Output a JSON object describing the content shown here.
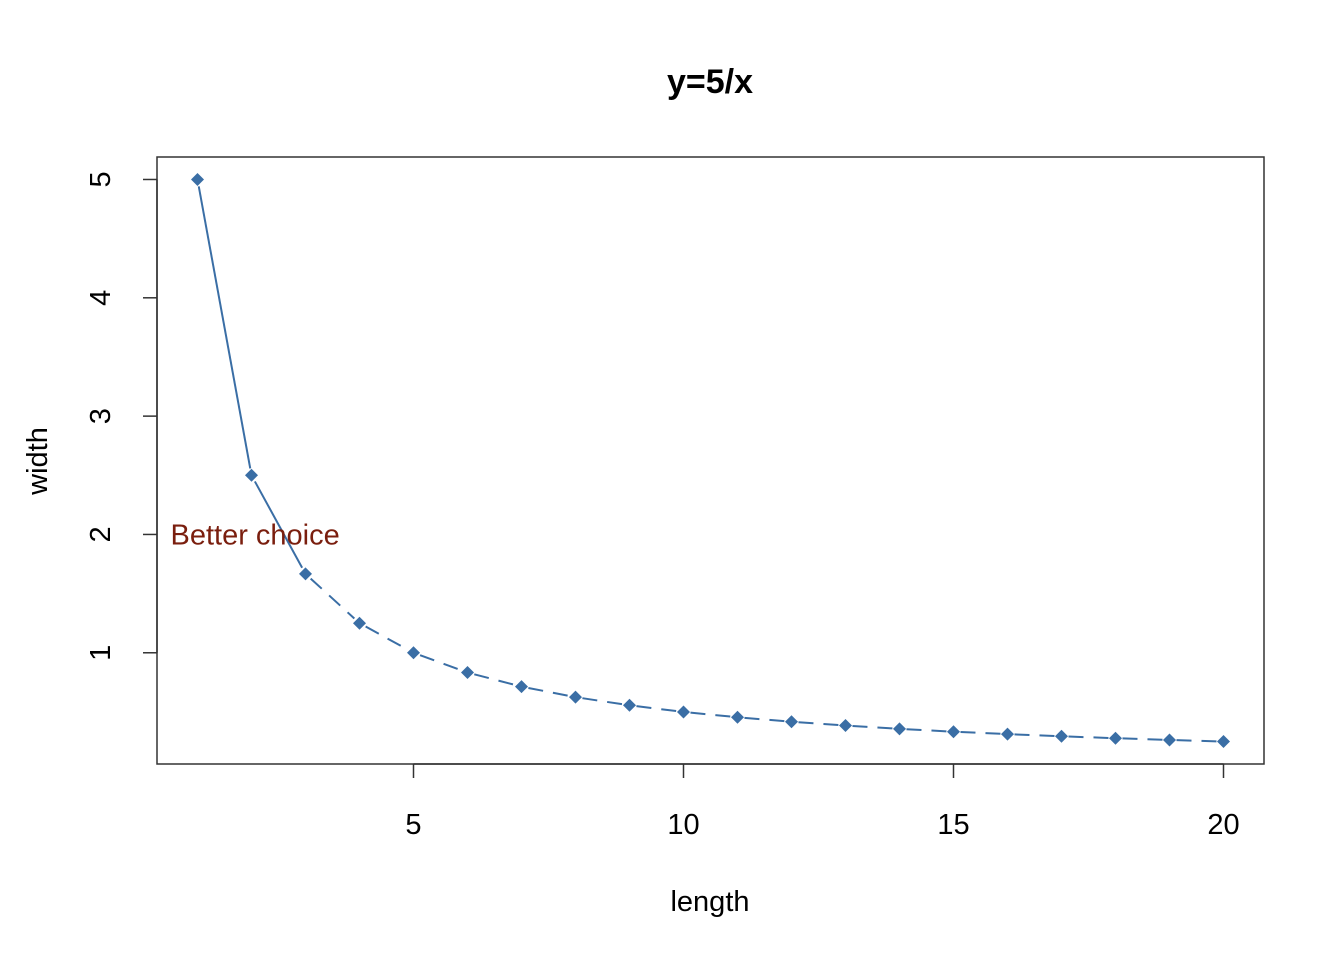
{
  "chart_data": {
    "type": "line",
    "title": "y=5/x",
    "xlabel": "length",
    "ylabel": "width",
    "xlim": [
      0.25,
      20.75
    ],
    "ylim": [
      0.06,
      5.19
    ],
    "xticks": [
      5,
      10,
      15,
      20
    ],
    "xtick_labels": [
      "5",
      "10",
      "15",
      "20"
    ],
    "yticks": [
      1,
      2,
      3,
      4,
      5
    ],
    "ytick_labels": [
      "1",
      "2",
      "3",
      "4",
      "5"
    ],
    "grid": false,
    "colors": {
      "series": "#3a6ea5",
      "annotation": "#7a1e0e",
      "axis": "#333333"
    },
    "series": [
      {
        "x": [
          1,
          2,
          3,
          4,
          5,
          6,
          7,
          8,
          9,
          10,
          11,
          12,
          13,
          14,
          15,
          16,
          17,
          18,
          19,
          20
        ],
        "y": [
          5,
          2.5,
          1.667,
          1.25,
          1,
          0.833,
          0.714,
          0.625,
          0.556,
          0.5,
          0.455,
          0.417,
          0.385,
          0.357,
          0.333,
          0.3125,
          0.294,
          0.278,
          0.263,
          0.25
        ],
        "marker": "diamond",
        "line_styles": [
          {
            "from_x": 1,
            "to_x": 2,
            "style": "solid"
          },
          {
            "from_x": 2,
            "to_x": 3,
            "style": "solid"
          },
          {
            "from_x": 3,
            "to_x": 20,
            "style": "dashed"
          }
        ]
      }
    ],
    "annotations": [
      {
        "text": "Better choice",
        "x": 0.5,
        "y": 2.0,
        "align": "left"
      }
    ]
  }
}
